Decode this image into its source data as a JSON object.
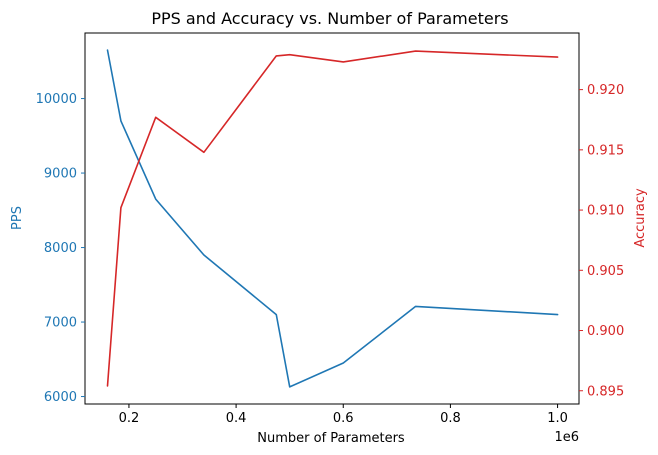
{
  "chart_data": {
    "type": "line",
    "title": "PPS and Accuracy vs. Number of Parameters",
    "xlabel": "Number of Parameters",
    "x_offset_label": "1e6",
    "x_ticks": [
      "0.2",
      "0.4",
      "0.6",
      "0.8",
      "1.0"
    ],
    "x_tick_values": [
      0.2,
      0.4,
      0.6,
      0.8,
      1.0
    ],
    "xlim": [
      0.118,
      1.04
    ],
    "x": [
      0.16,
      0.185,
      0.25,
      0.34,
      0.475,
      0.5,
      0.6,
      0.735,
      1.0
    ],
    "grid": false,
    "series": [
      {
        "name": "PPS",
        "axis": "left",
        "color": "#1f77b4",
        "values": [
          10650,
          9700,
          8650,
          7900,
          7100,
          6130,
          6450,
          7210,
          7100
        ]
      },
      {
        "name": "Accuracy",
        "axis": "right",
        "color": "#d62728",
        "values": [
          0.8954,
          0.9102,
          0.9177,
          0.9148,
          0.9228,
          0.9229,
          0.9223,
          0.9232,
          0.9227
        ]
      }
    ],
    "left_axis": {
      "label": "PPS",
      "color": "#1f77b4",
      "ylim": [
        5900,
        10880
      ],
      "ticks": [
        "6000",
        "7000",
        "8000",
        "9000",
        "10000"
      ],
      "tick_values": [
        6000,
        7000,
        8000,
        9000,
        10000
      ]
    },
    "right_axis": {
      "label": "Accuracy",
      "color": "#d62728",
      "ylim": [
        0.8939,
        0.9247
      ],
      "ticks": [
        "0.895",
        "0.900",
        "0.905",
        "0.910",
        "0.915",
        "0.920"
      ],
      "tick_values": [
        0.895,
        0.9,
        0.905,
        0.91,
        0.915,
        0.92
      ]
    }
  }
}
